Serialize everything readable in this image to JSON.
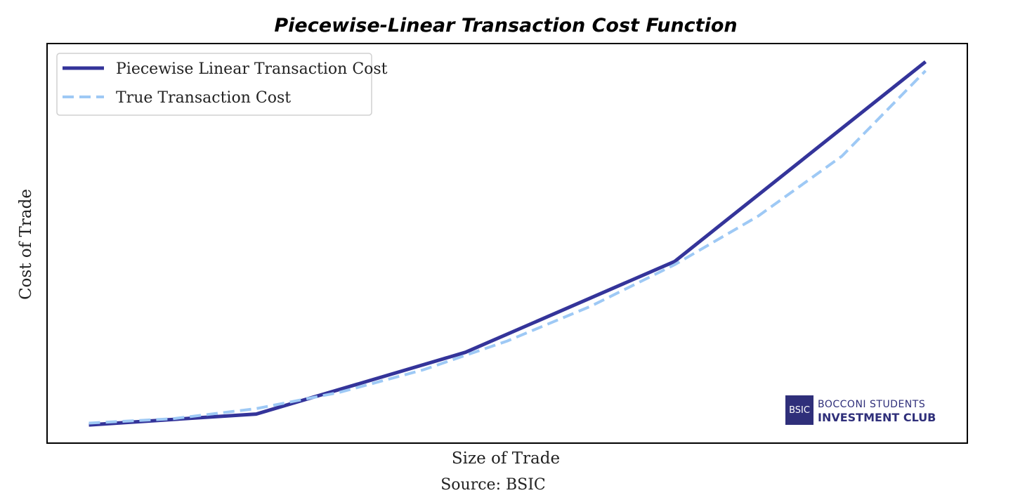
{
  "chart_data": {
    "type": "line",
    "title": "Piecewise-Linear Transaction Cost Function",
    "xlabel": "Size of Trade",
    "ylabel": "Cost of Trade",
    "source": "Source: BSIC",
    "xlim": [
      -0.05,
      1.05
    ],
    "ylim": [
      -0.05,
      1.05
    ],
    "grid": false,
    "legend_position": "top-left",
    "series": [
      {
        "name": "Piecewise Linear Transaction Cost",
        "color": "#34349a",
        "style": "solid",
        "x": [
          0.0,
          0.2,
          0.45,
          0.7,
          1.0
        ],
        "y": [
          0.0,
          0.03,
          0.2,
          0.45,
          1.0
        ]
      },
      {
        "name": "True Transaction Cost",
        "color": "#9ec9f5",
        "style": "dashed",
        "x": [
          0.0,
          0.1,
          0.2,
          0.3,
          0.4,
          0.5,
          0.6,
          0.7,
          0.8,
          0.9,
          1.0
        ],
        "y": [
          0.005,
          0.017,
          0.045,
          0.09,
          0.152,
          0.231,
          0.327,
          0.441,
          0.575,
          0.74,
          0.975
        ]
      }
    ]
  },
  "watermark": {
    "mark": "BSIC",
    "line1": "BOCCONI STUDENTS",
    "line2": "INVESTMENT CLUB"
  }
}
